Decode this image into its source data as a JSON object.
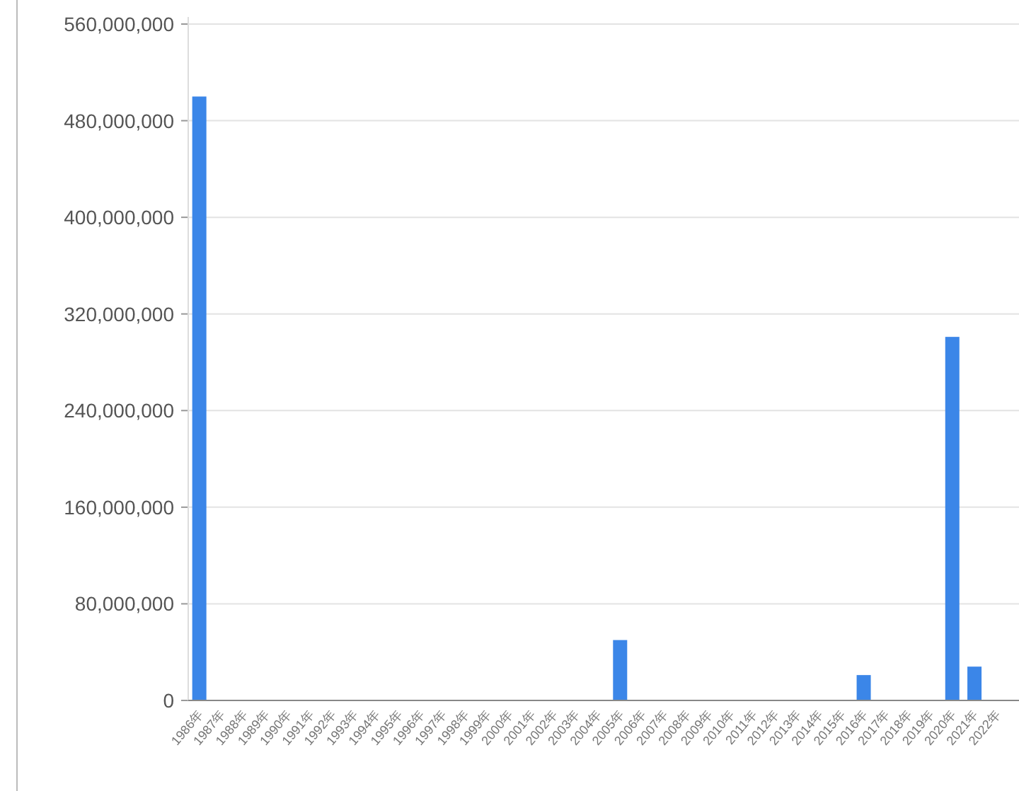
{
  "chart_data": {
    "type": "bar",
    "categories": [
      "1986年",
      "1987年",
      "1988年",
      "1989年",
      "1990年",
      "1991年",
      "1992年",
      "1993年",
      "1994年",
      "1995年",
      "1996年",
      "1997年",
      "1998年",
      "1999年",
      "2000年",
      "2001年",
      "2002年",
      "2003年",
      "2004年",
      "2005年",
      "2006年",
      "2007年",
      "2008年",
      "2009年",
      "2010年",
      "2011年",
      "2012年",
      "2013年",
      "2014年",
      "2015年",
      "2016年",
      "2017年",
      "2018年",
      "2019年",
      "2020年",
      "2021年",
      "2022年"
    ],
    "values": [
      500000000,
      0,
      0,
      0,
      0,
      0,
      0,
      0,
      0,
      0,
      0,
      0,
      0,
      0,
      0,
      0,
      0,
      0,
      0,
      50000000,
      0,
      0,
      0,
      0,
      0,
      0,
      0,
      0,
      0,
      0,
      21000000,
      0,
      0,
      0,
      301000000,
      28000000,
      0
    ],
    "color": "#3b86e8",
    "ylim": [
      0,
      560000000
    ],
    "yticks": [
      {
        "value": 0,
        "label": "0"
      },
      {
        "value": 80000000,
        "label": "80,000,000"
      },
      {
        "value": 160000000,
        "label": "160,000,000"
      },
      {
        "value": 240000000,
        "label": "240,000,000"
      },
      {
        "value": 320000000,
        "label": "320,000,000"
      },
      {
        "value": 400000000,
        "label": "400,000,000"
      },
      {
        "value": 480000000,
        "label": "480,000,000"
      },
      {
        "value": 560000000,
        "label": "560,000,000"
      }
    ],
    "grid": "y"
  }
}
